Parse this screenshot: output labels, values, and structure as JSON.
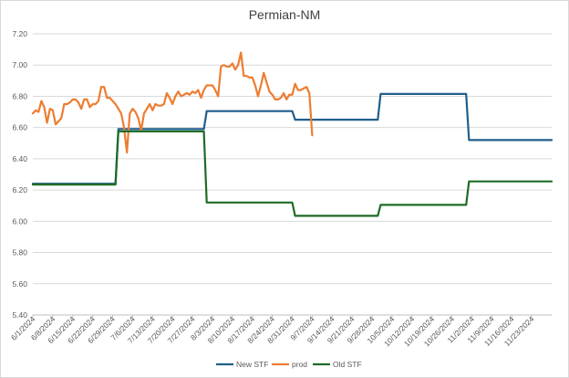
{
  "chart_data": {
    "type": "line",
    "title": "Permian-NM",
    "xlabel": "",
    "ylabel": "",
    "ylim": [
      5.4,
      7.2
    ],
    "y_ticks": [
      "5.40",
      "5.60",
      "5.80",
      "6.00",
      "6.20",
      "6.40",
      "6.60",
      "6.80",
      "7.00",
      "7.20"
    ],
    "x_range": [
      "2024-06-01",
      "2024-11-30"
    ],
    "x_ticks": [
      "6/1/2024",
      "6/8/2024",
      "6/15/2024",
      "6/22/2024",
      "6/29/2024",
      "7/6/2024",
      "7/13/2024",
      "7/20/2024",
      "7/27/2024",
      "8/3/2024",
      "8/10/2024",
      "8/17/2024",
      "8/24/2024",
      "8/31/2024",
      "9/7/2024",
      "9/14/2024",
      "9/21/2024",
      "9/28/2024",
      "10/5/2024",
      "10/12/2024",
      "10/19/2024",
      "10/26/2024",
      "11/2/2024",
      "11/9/2024",
      "11/16/2024",
      "11/23/2024"
    ],
    "grid": true,
    "legend_position": "bottom",
    "series": [
      {
        "name": "New STF",
        "color": "#1f5f8b",
        "step": true,
        "points": [
          [
            "2024-06-01",
            6.24
          ],
          [
            "2024-06-30",
            6.24
          ],
          [
            "2024-07-01",
            6.59
          ],
          [
            "2024-07-31",
            6.59
          ],
          [
            "2024-08-01",
            6.705
          ],
          [
            "2024-08-31",
            6.705
          ],
          [
            "2024-09-01",
            6.65
          ],
          [
            "2024-09-30",
            6.65
          ],
          [
            "2024-10-01",
            6.815
          ],
          [
            "2024-10-31",
            6.815
          ],
          [
            "2024-11-01",
            6.52
          ],
          [
            "2024-11-30",
            6.52
          ]
        ]
      },
      {
        "name": "prod",
        "color": "#ed7d31",
        "step": false,
        "points": [
          [
            "2024-06-01",
            6.69
          ],
          [
            "2024-06-02",
            6.71
          ],
          [
            "2024-06-03",
            6.7
          ],
          [
            "2024-06-04",
            6.77
          ],
          [
            "2024-06-05",
            6.73
          ],
          [
            "2024-06-06",
            6.63
          ],
          [
            "2024-06-07",
            6.72
          ],
          [
            "2024-06-08",
            6.71
          ],
          [
            "2024-06-09",
            6.62
          ],
          [
            "2024-06-10",
            6.64
          ],
          [
            "2024-06-11",
            6.66
          ],
          [
            "2024-06-12",
            6.75
          ],
          [
            "2024-06-13",
            6.75
          ],
          [
            "2024-06-14",
            6.76
          ],
          [
            "2024-06-15",
            6.78
          ],
          [
            "2024-06-16",
            6.78
          ],
          [
            "2024-06-17",
            6.76
          ],
          [
            "2024-06-18",
            6.72
          ],
          [
            "2024-06-19",
            6.78
          ],
          [
            "2024-06-20",
            6.78
          ],
          [
            "2024-06-21",
            6.73
          ],
          [
            "2024-06-22",
            6.75
          ],
          [
            "2024-06-23",
            6.75
          ],
          [
            "2024-06-24",
            6.77
          ],
          [
            "2024-06-25",
            6.86
          ],
          [
            "2024-06-26",
            6.86
          ],
          [
            "2024-06-27",
            6.79
          ],
          [
            "2024-06-28",
            6.79
          ],
          [
            "2024-06-29",
            6.77
          ],
          [
            "2024-06-30",
            6.75
          ],
          [
            "2024-07-01",
            6.72
          ],
          [
            "2024-07-02",
            6.69
          ],
          [
            "2024-07-03",
            6.6
          ],
          [
            "2024-07-04",
            6.44
          ],
          [
            "2024-07-05",
            6.69
          ],
          [
            "2024-07-06",
            6.72
          ],
          [
            "2024-07-07",
            6.7
          ],
          [
            "2024-07-08",
            6.66
          ],
          [
            "2024-07-09",
            6.58
          ],
          [
            "2024-07-10",
            6.69
          ],
          [
            "2024-07-11",
            6.72
          ],
          [
            "2024-07-12",
            6.75
          ],
          [
            "2024-07-13",
            6.71
          ],
          [
            "2024-07-14",
            6.75
          ],
          [
            "2024-07-15",
            6.74
          ],
          [
            "2024-07-16",
            6.74
          ],
          [
            "2024-07-17",
            6.75
          ],
          [
            "2024-07-18",
            6.82
          ],
          [
            "2024-07-19",
            6.79
          ],
          [
            "2024-07-20",
            6.75
          ],
          [
            "2024-07-21",
            6.8
          ],
          [
            "2024-07-22",
            6.83
          ],
          [
            "2024-07-23",
            6.8
          ],
          [
            "2024-07-24",
            6.81
          ],
          [
            "2024-07-25",
            6.82
          ],
          [
            "2024-07-26",
            6.81
          ],
          [
            "2024-07-27",
            6.83
          ],
          [
            "2024-07-28",
            6.82
          ],
          [
            "2024-07-29",
            6.84
          ],
          [
            "2024-07-30",
            6.79
          ],
          [
            "2024-07-31",
            6.84
          ],
          [
            "2024-08-01",
            6.87
          ],
          [
            "2024-08-02",
            6.87
          ],
          [
            "2024-08-03",
            6.87
          ],
          [
            "2024-08-04",
            6.84
          ],
          [
            "2024-08-05",
            6.8
          ],
          [
            "2024-08-06",
            6.99
          ],
          [
            "2024-08-07",
            7.0
          ],
          [
            "2024-08-08",
            6.99
          ],
          [
            "2024-08-09",
            6.99
          ],
          [
            "2024-08-10",
            7.01
          ],
          [
            "2024-08-11",
            6.97
          ],
          [
            "2024-08-12",
            7.0
          ],
          [
            "2024-08-13",
            7.08
          ],
          [
            "2024-08-14",
            6.93
          ],
          [
            "2024-08-15",
            6.93
          ],
          [
            "2024-08-16",
            6.92
          ],
          [
            "2024-08-17",
            6.92
          ],
          [
            "2024-08-18",
            6.87
          ],
          [
            "2024-08-19",
            6.8
          ],
          [
            "2024-08-20",
            6.87
          ],
          [
            "2024-08-21",
            6.95
          ],
          [
            "2024-08-22",
            6.89
          ],
          [
            "2024-08-23",
            6.83
          ],
          [
            "2024-08-24",
            6.81
          ],
          [
            "2024-08-25",
            6.78
          ],
          [
            "2024-08-26",
            6.78
          ],
          [
            "2024-08-27",
            6.79
          ],
          [
            "2024-08-28",
            6.82
          ],
          [
            "2024-08-29",
            6.78
          ],
          [
            "2024-08-30",
            6.81
          ],
          [
            "2024-08-31",
            6.81
          ],
          [
            "2024-09-01",
            6.88
          ],
          [
            "2024-09-02",
            6.84
          ],
          [
            "2024-09-03",
            6.84
          ],
          [
            "2024-09-04",
            6.85
          ],
          [
            "2024-09-05",
            6.86
          ],
          [
            "2024-09-06",
            6.82
          ],
          [
            "2024-09-07",
            6.55
          ]
        ]
      },
      {
        "name": "Old STF",
        "color": "#1e6b26",
        "step": true,
        "points": [
          [
            "2024-06-01",
            6.235
          ],
          [
            "2024-06-30",
            6.235
          ],
          [
            "2024-07-01",
            6.575
          ],
          [
            "2024-07-31",
            6.575
          ],
          [
            "2024-08-01",
            6.12
          ],
          [
            "2024-08-31",
            6.12
          ],
          [
            "2024-09-01",
            6.035
          ],
          [
            "2024-09-30",
            6.035
          ],
          [
            "2024-10-01",
            6.105
          ],
          [
            "2024-10-31",
            6.105
          ],
          [
            "2024-11-01",
            6.255
          ],
          [
            "2024-11-30",
            6.255
          ]
        ]
      }
    ]
  }
}
